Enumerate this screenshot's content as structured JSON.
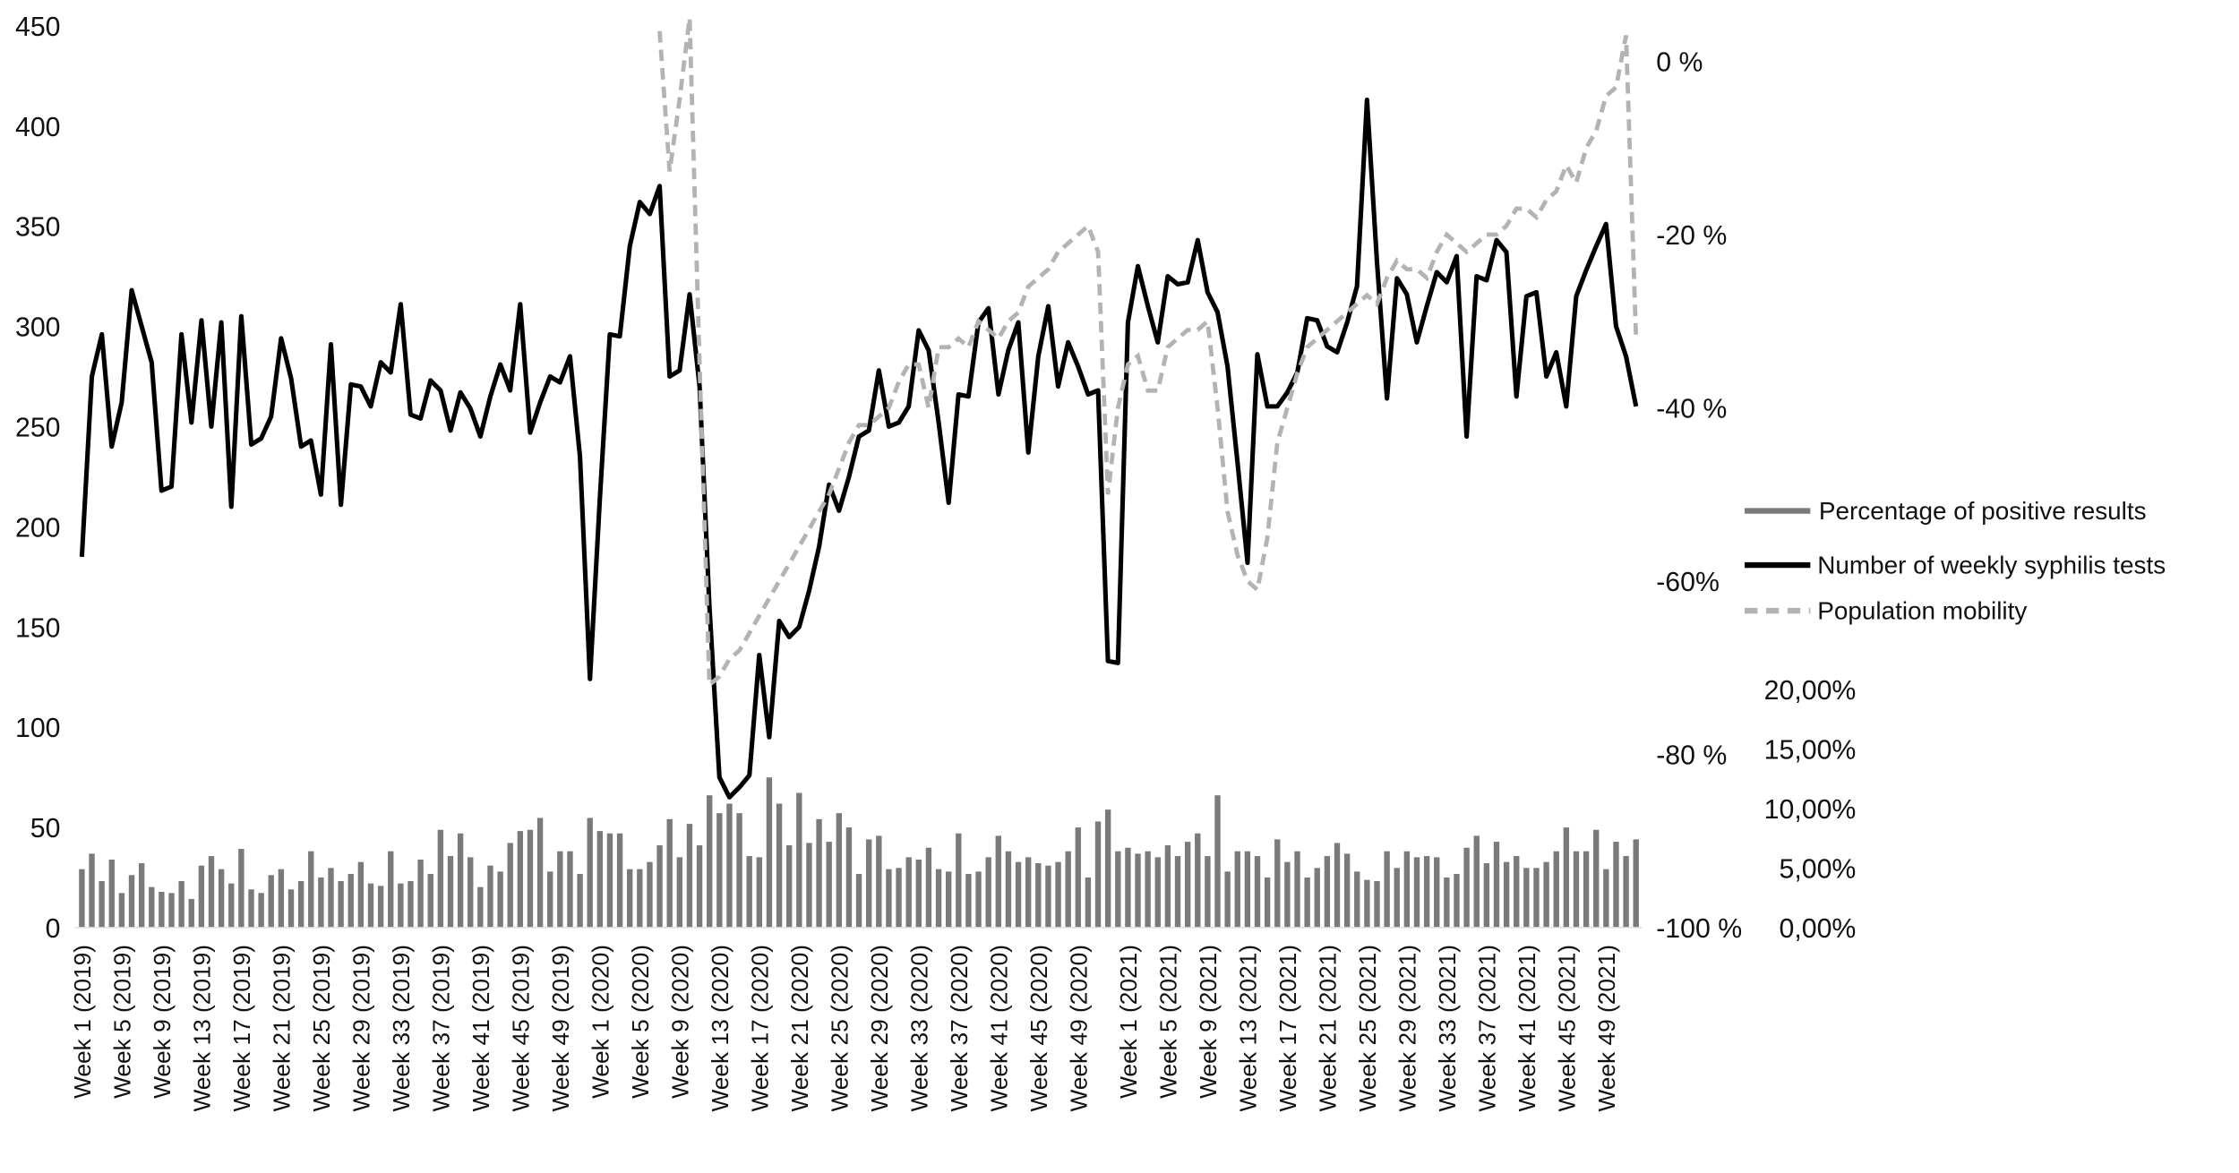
{
  "chart_data": {
    "type": "bar+line",
    "title": "",
    "x_tick_labels": [
      "Week 1 (2019)",
      "Week 5 (2019)",
      "Week 9 (2019)",
      "Week 13 (2019)",
      "Week 17 (2019)",
      "Week 21 (2019)",
      "Week 25 (2019)",
      "Week 29 (2019)",
      "Week 33 (2019)",
      "Week 37 (2019)",
      "Week 41 (2019)",
      "Week 45 (2019)",
      "Week 49 (2019)",
      "Week 1 (2020)",
      "Week 5  (2020)",
      "Week 9  (2020)",
      "Week 13  (2020)",
      "Week 17  (2020)",
      "Week 21  (2020)",
      "Week 25  (2020)",
      "Week 29  (2020)",
      "Week 33  (2020)",
      "Week 37  (2020)",
      "Week 41  (2020)",
      "Week 45  (2020)",
      "Week 49  (2020)",
      "Week 1  (2021)",
      "Week 5  (2021)",
      "Week 9  (2021)",
      "Week 13  (2021)",
      "Week 17  (2021)",
      "Week 21  (2021)",
      "Week 25  (2021)",
      "Week 29  (2021)",
      "Week 33  (2021)",
      "Week 37  (2021)",
      "Week 41  (2021)",
      "Week 45  (2021)",
      "Week 49  (2021)"
    ],
    "weeks_per_year": {
      "2019": 52,
      "2020": 53,
      "2021": 52
    },
    "axes": {
      "left": {
        "range": [
          0,
          450
        ],
        "ticks": [
          "0",
          "50",
          "100",
          "150",
          "200",
          "250",
          "300",
          "350",
          "400",
          "450"
        ]
      },
      "mobility": {
        "range": [
          -100,
          0
        ],
        "ticks": [
          "-100 %",
          "-80 %",
          "-60%",
          "-40 %",
          "-20 %",
          "0 %"
        ]
      },
      "positivity": {
        "range": [
          0,
          20
        ],
        "ticks": [
          "0,00%",
          "5,00%",
          "10,00%",
          "15,00%",
          "20,00%"
        ]
      }
    },
    "grid": false,
    "legend_placement": "right",
    "series": [
      {
        "name": "Percentage of positive results",
        "type": "bar",
        "axis": "positivity",
        "unit": "%",
        "color": "#7a7a7a",
        "values": [
          4.9,
          6.2,
          3.9,
          5.7,
          2.9,
          4.4,
          5.4,
          3.4,
          3.0,
          2.9,
          3.9,
          2.4,
          5.2,
          6.0,
          4.9,
          3.7,
          6.6,
          3.2,
          2.9,
          4.4,
          4.9,
          3.2,
          3.9,
          6.4,
          4.2,
          5.0,
          3.9,
          4.5,
          5.5,
          3.7,
          3.5,
          6.4,
          3.7,
          3.9,
          5.7,
          4.5,
          8.2,
          6.0,
          7.9,
          5.9,
          3.4,
          5.2,
          4.7,
          7.1,
          8.1,
          8.2,
          9.2,
          4.7,
          6.4,
          6.4,
          4.5,
          9.2,
          8.1,
          7.9,
          7.9,
          4.9,
          4.9,
          5.5,
          6.9,
          9.1,
          5.9,
          8.7,
          6.9,
          11.1,
          9.6,
          10.4,
          9.6,
          6.0,
          5.9,
          12.6,
          10.4,
          6.9,
          11.3,
          7.1,
          9.1,
          7.2,
          9.6,
          8.4,
          4.5,
          7.4,
          7.7,
          4.9,
          5.0,
          5.9,
          5.7,
          6.7,
          4.9,
          4.7,
          7.9,
          4.5,
          4.7,
          5.9,
          7.7,
          6.4,
          5.5,
          5.9,
          5.4,
          5.2,
          5.5,
          6.4,
          8.4,
          4.2,
          8.9,
          9.9,
          6.4,
          6.7,
          6.2,
          6.4,
          5.9,
          6.9,
          6.0,
          7.2,
          7.9,
          6.0,
          11.1,
          4.7,
          6.4,
          6.4,
          6.0,
          4.2,
          7.4,
          5.5,
          6.4,
          4.2,
          5.0,
          6.0,
          7.1,
          6.2,
          4.7,
          4.0,
          3.9,
          6.4,
          5.0,
          6.4,
          5.9,
          6.0,
          5.9,
          4.2,
          4.5,
          6.7,
          7.7,
          5.4,
          7.2,
          5.5,
          6.0,
          5.0,
          5.0,
          5.5,
          6.4,
          8.4,
          6.4,
          6.4,
          8.2,
          4.9,
          7.2,
          6.0,
          7.4
        ]
      },
      {
        "name": "Number of weekly syphilis tests",
        "type": "line",
        "axis": "left",
        "color": "#000000",
        "values": [
          185,
          275,
          296,
          240,
          262,
          318,
          300,
          282,
          218,
          220,
          296,
          252,
          303,
          250,
          302,
          210,
          305,
          241,
          244,
          255,
          294,
          274,
          240,
          243,
          216,
          291,
          211,
          271,
          270,
          260,
          282,
          277,
          311,
          256,
          254,
          273,
          268,
          248,
          267,
          259,
          245,
          265,
          281,
          268,
          311,
          247,
          262,
          275,
          272,
          285,
          235,
          124,
          215,
          296,
          295,
          340,
          362,
          356,
          370,
          275,
          278,
          316,
          270,
          160,
          75,
          65,
          70,
          76,
          136,
          95,
          153,
          145,
          150,
          168,
          190,
          221,
          208,
          225,
          245,
          248,
          278,
          250,
          252,
          260,
          298,
          288,
          252,
          212,
          266,
          265,
          302,
          309,
          266,
          288,
          302,
          237,
          285,
          310,
          270,
          292,
          280,
          266,
          268,
          133,
          132,
          302,
          330,
          310,
          292,
          325,
          321,
          322,
          343,
          317,
          307,
          280,
          232,
          182,
          286,
          260,
          260,
          267,
          277,
          304,
          303,
          290,
          287,
          302,
          320,
          413,
          332,
          264,
          324,
          316,
          292,
          310,
          327,
          322,
          335,
          245,
          325,
          323,
          343,
          337,
          265,
          315,
          317,
          275,
          287,
          260,
          315,
          328,
          340,
          351,
          300,
          285,
          260
        ]
      },
      {
        "name": "Population mobility",
        "type": "line",
        "style": "dashed",
        "axis": "mobility",
        "unit": "%",
        "color": "#b3b3b3",
        "values": [
          null,
          null,
          null,
          null,
          null,
          null,
          null,
          null,
          null,
          null,
          null,
          null,
          null,
          null,
          null,
          null,
          null,
          null,
          null,
          null,
          null,
          null,
          null,
          null,
          null,
          null,
          null,
          null,
          null,
          null,
          null,
          null,
          null,
          null,
          null,
          null,
          null,
          null,
          null,
          null,
          null,
          null,
          null,
          null,
          null,
          null,
          null,
          null,
          null,
          null,
          null,
          null,
          null,
          null,
          null,
          null,
          null,
          null,
          3.5,
          -12.7,
          -4.4,
          5,
          -35,
          -72,
          -71,
          -69,
          -68,
          -66,
          -64,
          -62,
          -60,
          -58,
          -56,
          -54,
          -52,
          -50,
          -47,
          -44,
          -42,
          -42,
          -41,
          -40,
          -37,
          -35,
          -35,
          -40,
          -33,
          -33,
          -32,
          -33,
          -30,
          -31,
          -32,
          -30,
          -29,
          -26,
          -25,
          -24,
          -22,
          -21,
          -20,
          -19,
          -22,
          -50,
          -40,
          -35,
          -34,
          -38,
          -38,
          -33,
          -32,
          -31,
          -31,
          -30,
          -40,
          -52,
          -57,
          -60,
          -61,
          -55,
          -44,
          -40,
          -36,
          -33,
          -32,
          -31,
          -30,
          -29,
          -28,
          -27,
          -28,
          -25,
          -23,
          -24,
          -24,
          -25,
          -22,
          -20,
          -21,
          -22,
          -21,
          -20,
          -20,
          -19,
          -17,
          -17,
          -18,
          -16,
          -15,
          -12,
          -14,
          -10,
          -8,
          -4,
          -3,
          3,
          -32
        ]
      }
    ]
  }
}
